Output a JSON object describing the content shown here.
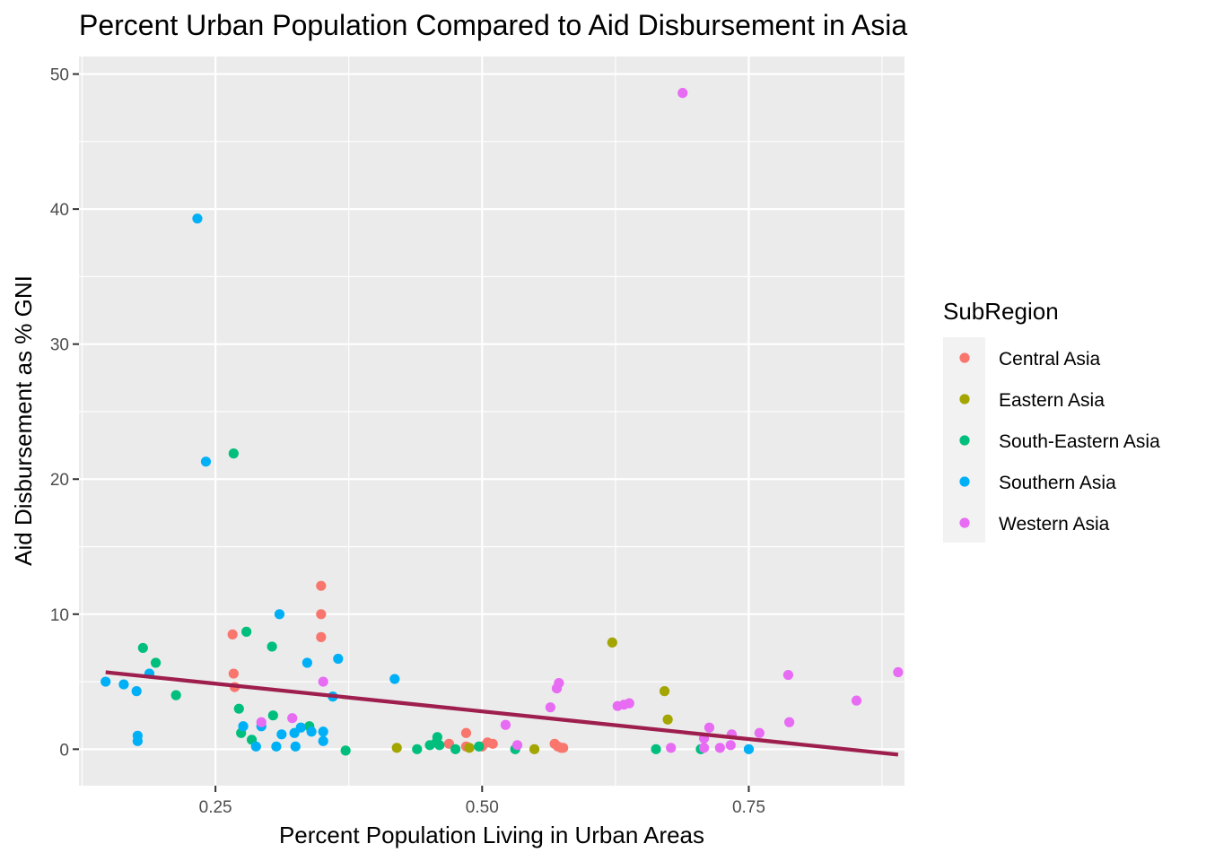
{
  "chart_data": {
    "type": "scatter",
    "title": "Percent Urban Population Compared to Aid Disbursement in Asia",
    "xlabel": "Percent Population Living in Urban Areas",
    "ylabel": "Aid Disbursement as % GNI",
    "xlim": [
      0.122,
      0.896
    ],
    "ylim": [
      -2.7,
      51.3
    ],
    "x_ticks": [
      0.25,
      0.5,
      0.75
    ],
    "x_tick_labels": [
      "0.25",
      "0.50",
      "0.75"
    ],
    "y_ticks": [
      0,
      10,
      20,
      30,
      40,
      50
    ],
    "y_tick_labels": [
      "0",
      "10",
      "20",
      "30",
      "40",
      "50"
    ],
    "grid": true,
    "legend": {
      "title": "SubRegion",
      "placement": "right"
    },
    "series": [
      {
        "name": "Central Asia",
        "color": "#F8766D",
        "points": [
          [
            0.266,
            8.5
          ],
          [
            0.267,
            5.6
          ],
          [
            0.268,
            4.6
          ],
          [
            0.349,
            12.1
          ],
          [
            0.349,
            10.0
          ],
          [
            0.349,
            8.3
          ],
          [
            0.469,
            0.4
          ],
          [
            0.485,
            1.2
          ],
          [
            0.485,
            0.2
          ],
          [
            0.5,
            0.2
          ],
          [
            0.505,
            0.5
          ],
          [
            0.51,
            0.4
          ],
          [
            0.568,
            0.4
          ],
          [
            0.571,
            0.2
          ],
          [
            0.574,
            0.1
          ],
          [
            0.576,
            0.1
          ]
        ]
      },
      {
        "name": "Eastern Asia",
        "color": "#A3A500",
        "points": [
          [
            0.42,
            0.1
          ],
          [
            0.488,
            0.1
          ],
          [
            0.549,
            0.0
          ],
          [
            0.622,
            7.9
          ],
          [
            0.671,
            4.3
          ],
          [
            0.674,
            2.2
          ]
        ]
      },
      {
        "name": "South-Eastern Asia",
        "color": "#00BF7D",
        "points": [
          [
            0.182,
            7.5
          ],
          [
            0.194,
            6.4
          ],
          [
            0.213,
            4.0
          ],
          [
            0.267,
            21.9
          ],
          [
            0.272,
            3.0
          ],
          [
            0.274,
            1.2
          ],
          [
            0.279,
            8.7
          ],
          [
            0.284,
            0.7
          ],
          [
            0.303,
            7.6
          ],
          [
            0.304,
            2.5
          ],
          [
            0.338,
            1.7
          ],
          [
            0.372,
            -0.1
          ],
          [
            0.439,
            0.0
          ],
          [
            0.451,
            0.3
          ],
          [
            0.457,
            0.5
          ],
          [
            0.458,
            0.9
          ],
          [
            0.46,
            0.3
          ],
          [
            0.475,
            0.0
          ],
          [
            0.497,
            0.2
          ],
          [
            0.531,
            0.0
          ],
          [
            0.663,
            0.0
          ],
          [
            0.705,
            0.0
          ]
        ]
      },
      {
        "name": "Southern Asia",
        "color": "#00B0F6",
        "points": [
          [
            0.147,
            5.0
          ],
          [
            0.164,
            4.8
          ],
          [
            0.176,
            4.3
          ],
          [
            0.177,
            1.0
          ],
          [
            0.177,
            0.6
          ],
          [
            0.188,
            5.6
          ],
          [
            0.233,
            39.3
          ],
          [
            0.241,
            21.3
          ],
          [
            0.276,
            1.7
          ],
          [
            0.288,
            0.2
          ],
          [
            0.293,
            1.7
          ],
          [
            0.307,
            0.2
          ],
          [
            0.31,
            10.0
          ],
          [
            0.312,
            1.1
          ],
          [
            0.324,
            1.2
          ],
          [
            0.325,
            0.2
          ],
          [
            0.33,
            1.6
          ],
          [
            0.336,
            6.4
          ],
          [
            0.34,
            1.3
          ],
          [
            0.351,
            1.3
          ],
          [
            0.351,
            0.6
          ],
          [
            0.36,
            3.9
          ],
          [
            0.365,
            6.7
          ],
          [
            0.418,
            5.2
          ],
          [
            0.75,
            0.0
          ]
        ]
      },
      {
        "name": "Western Asia",
        "color": "#E76BF3",
        "points": [
          [
            0.293,
            2.0
          ],
          [
            0.322,
            2.3
          ],
          [
            0.351,
            5.0
          ],
          [
            0.522,
            1.8
          ],
          [
            0.533,
            0.3
          ],
          [
            0.564,
            3.1
          ],
          [
            0.57,
            4.5
          ],
          [
            0.572,
            4.9
          ],
          [
            0.627,
            3.2
          ],
          [
            0.633,
            3.3
          ],
          [
            0.638,
            3.4
          ],
          [
            0.688,
            48.6
          ],
          [
            0.677,
            0.1
          ],
          [
            0.708,
            0.8
          ],
          [
            0.708,
            0.1
          ],
          [
            0.713,
            1.6
          ],
          [
            0.723,
            0.1
          ],
          [
            0.733,
            0.3
          ],
          [
            0.734,
            1.1
          ],
          [
            0.76,
            1.2
          ],
          [
            0.787,
            5.5
          ],
          [
            0.788,
            2.0
          ],
          [
            0.851,
            3.6
          ],
          [
            0.89,
            5.7
          ]
        ]
      }
    ],
    "trend_line": {
      "type": "linear",
      "color": "#9E1F4E",
      "x": [
        0.147,
        0.89
      ],
      "y": [
        5.7,
        -0.4
      ]
    }
  }
}
